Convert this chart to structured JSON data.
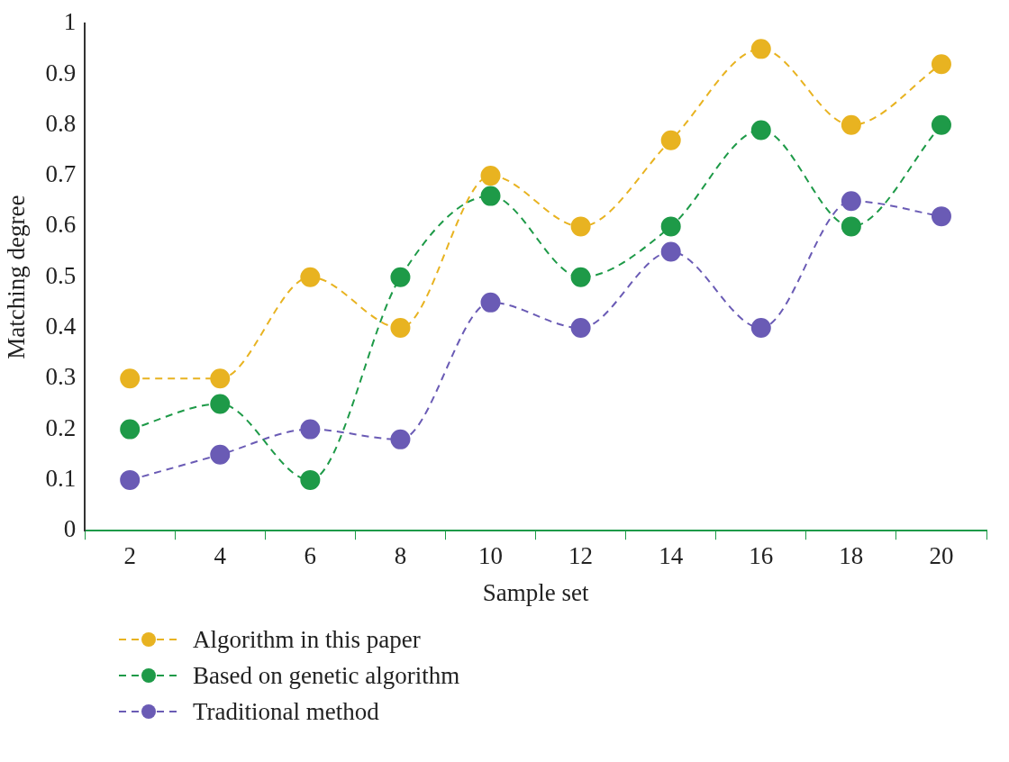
{
  "chart_data": {
    "type": "line",
    "xlabel": "Sample set",
    "ylabel": "Matching degree",
    "categories": [
      "2",
      "4",
      "6",
      "8",
      "10",
      "12",
      "14",
      "16",
      "18",
      "20"
    ],
    "series": [
      {
        "name": "Algorithm in this paper",
        "color": "#e8b321",
        "values": [
          0.3,
          0.3,
          0.5,
          0.4,
          0.7,
          0.6,
          0.77,
          0.95,
          0.8,
          0.92
        ]
      },
      {
        "name": "Based on genetic algorithm",
        "color": "#1e9a48",
        "values": [
          0.2,
          0.25,
          0.1,
          0.5,
          0.66,
          0.5,
          0.6,
          0.79,
          0.6,
          0.8
        ]
      },
      {
        "name": "Traditional method",
        "color": "#6a5bb5",
        "values": [
          0.1,
          0.15,
          0.2,
          0.18,
          0.45,
          0.4,
          0.55,
          0.4,
          0.65,
          0.62
        ]
      }
    ],
    "ylim": [
      0,
      1
    ],
    "yticks": [
      0,
      0.1,
      0.2,
      0.3,
      0.4,
      0.5,
      0.6,
      0.7,
      0.8,
      0.9,
      1
    ],
    "grid": false,
    "legend": "bottom left",
    "marker": "circle",
    "line_style": "dashed"
  }
}
